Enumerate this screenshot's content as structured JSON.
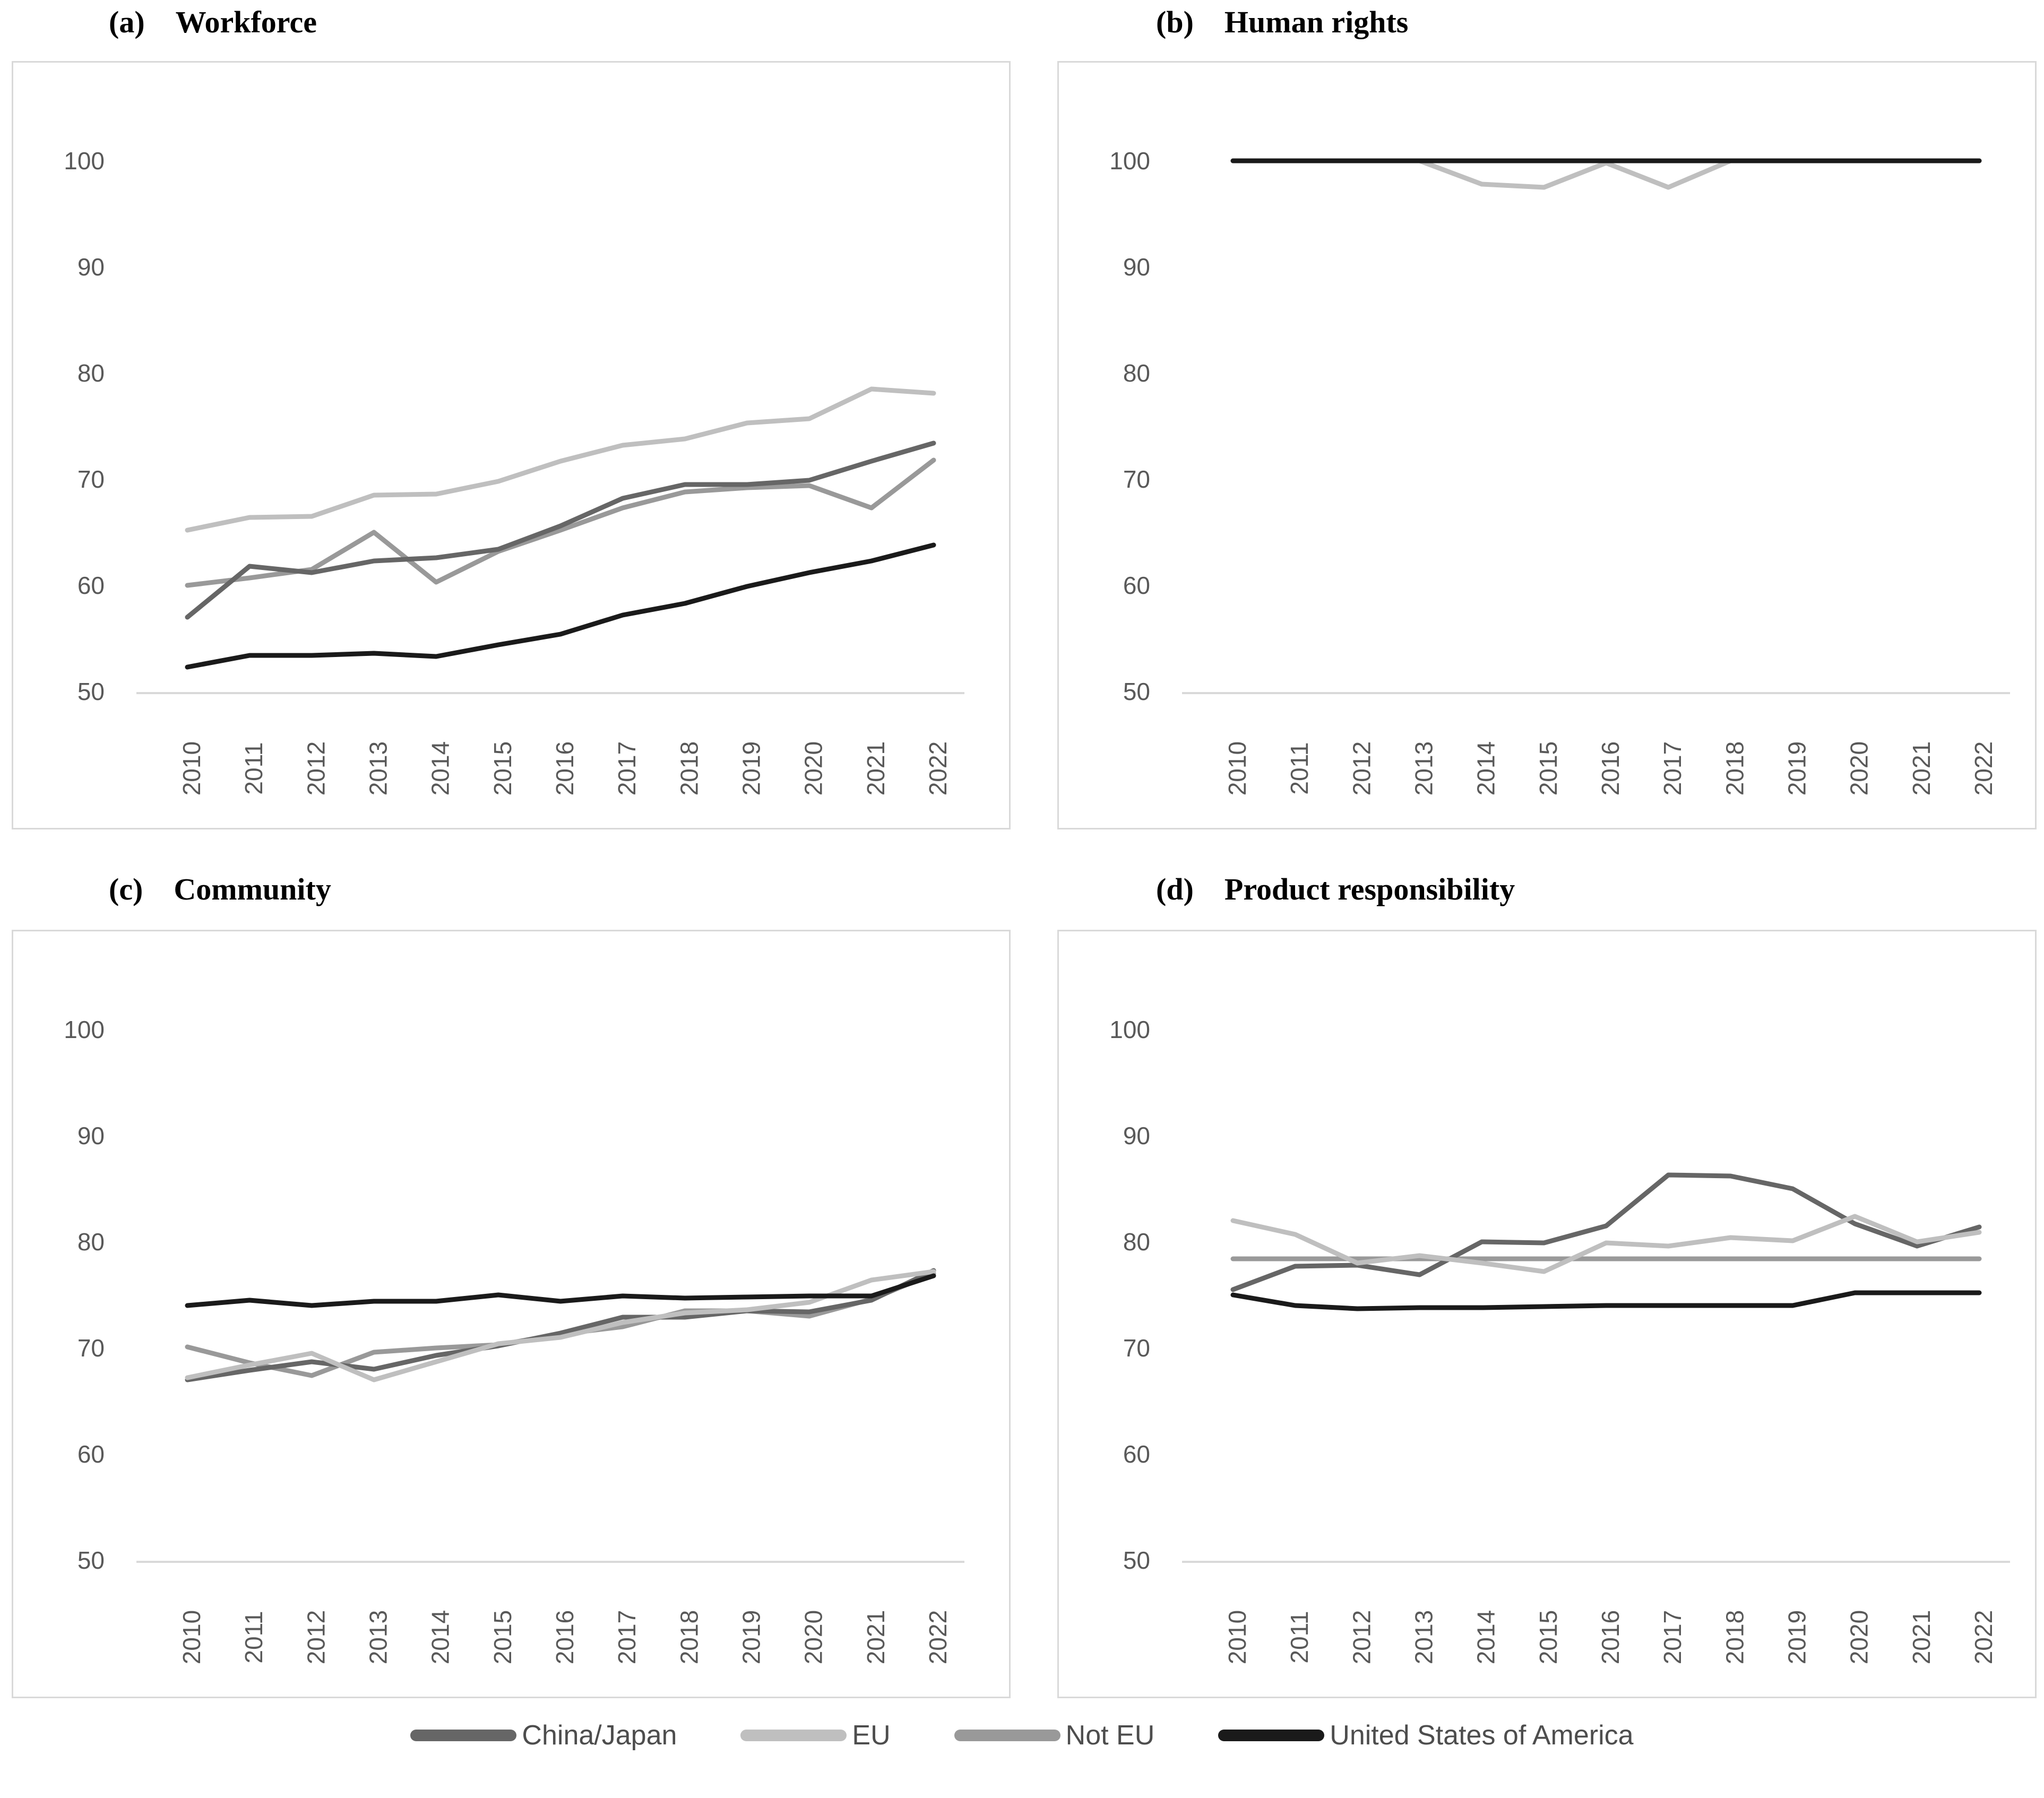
{
  "figure": {
    "description": "Four line charts of ESG pillar scores (2010-2022) by region",
    "ylabel": "",
    "colors": {
      "china_japan": "#666666",
      "eu": "#bfbfbf",
      "not_eu": "#999999",
      "usa": "#1a1a1a",
      "axis_text": "#595959",
      "axis_line": "#d9d9d9",
      "panel_border": "#d9d9d9"
    }
  },
  "legend": {
    "items": [
      {
        "label": "China/Japan",
        "color": "#666666"
      },
      {
        "label": "EU",
        "color": "#bfbfbf"
      },
      {
        "label": "Not EU",
        "color": "#999999"
      },
      {
        "label": "United States of America",
        "color": "#1a1a1a"
      }
    ]
  },
  "chart_data": [
    {
      "type": "line",
      "panel_label": "(a)",
      "title": "Workforce",
      "categories": [
        "2010",
        "2011",
        "2012",
        "2013",
        "2014",
        "2015",
        "2016",
        "2017",
        "2018",
        "2019",
        "2020",
        "2021",
        "2022"
      ],
      "ylim": [
        50,
        100
      ],
      "yticks": [
        100,
        90,
        80,
        70,
        60,
        50
      ],
      "grid": false,
      "series": [
        {
          "name": "Not EU",
          "color": "#999999",
          "values": [
            60.0,
            60.7,
            61.5,
            65.0,
            60.3,
            63.2,
            65.2,
            67.3,
            68.8,
            69.2,
            69.4,
            67.3,
            71.8
          ]
        },
        {
          "name": "China/Japan",
          "color": "#666666",
          "values": [
            57.0,
            61.8,
            61.2,
            62.3,
            62.6,
            63.4,
            65.6,
            68.2,
            69.5,
            69.5,
            69.9,
            71.7,
            73.4
          ]
        },
        {
          "name": "EU",
          "color": "#bfbfbf",
          "values": [
            65.2,
            66.4,
            66.5,
            68.5,
            68.6,
            69.8,
            71.7,
            73.2,
            73.8,
            75.3,
            75.7,
            78.5,
            78.1
          ]
        },
        {
          "name": "United States of America",
          "color": "#1a1a1a",
          "values": [
            52.3,
            53.4,
            53.4,
            53.6,
            53.3,
            54.4,
            55.4,
            57.2,
            58.3,
            59.9,
            61.2,
            62.3,
            63.8
          ]
        }
      ]
    },
    {
      "type": "line",
      "panel_label": "(b)",
      "title": "Human rights",
      "categories": [
        "2010",
        "2011",
        "2012",
        "2013",
        "2014",
        "2015",
        "2016",
        "2017",
        "2018",
        "2019",
        "2020",
        "2021",
        "2022"
      ],
      "ylim": [
        50,
        100
      ],
      "yticks": [
        100,
        90,
        80,
        70,
        60,
        50
      ],
      "grid": false,
      "series": [
        {
          "name": "Not EU",
          "color": "#999999",
          "values": [
            100,
            100,
            100,
            100,
            100,
            100,
            100,
            100,
            100,
            100,
            100,
            100,
            100
          ]
        },
        {
          "name": "China/Japan",
          "color": "#666666",
          "values": [
            100,
            100,
            100,
            100,
            100,
            100,
            100,
            100,
            100,
            100,
            100,
            100,
            100
          ]
        },
        {
          "name": "EU",
          "color": "#bfbfbf",
          "values": [
            100,
            100,
            100,
            100,
            97.8,
            97.5,
            99.8,
            97.5,
            100,
            100,
            100,
            100,
            100
          ]
        },
        {
          "name": "United States of America",
          "color": "#1a1a1a",
          "values": [
            100,
            100,
            100,
            100,
            100,
            100,
            100,
            100,
            100,
            100,
            100,
            100,
            100
          ]
        }
      ]
    },
    {
      "type": "line",
      "panel_label": "(c)",
      "title": "Community",
      "categories": [
        "2010",
        "2011",
        "2012",
        "2013",
        "2014",
        "2015",
        "2016",
        "2017",
        "2018",
        "2019",
        "2020",
        "2021",
        "2022"
      ],
      "ylim": [
        50,
        100
      ],
      "yticks": [
        100,
        90,
        80,
        70,
        60,
        50
      ],
      "grid": false,
      "series": [
        {
          "name": "Not EU",
          "color": "#999999",
          "values": [
            70.1,
            68.6,
            67.4,
            69.6,
            70.0,
            70.3,
            71.3,
            72.0,
            73.5,
            73.5,
            73.0,
            74.6,
            77.0
          ]
        },
        {
          "name": "China/Japan",
          "color": "#666666",
          "values": [
            67.0,
            67.9,
            68.7,
            68.0,
            69.3,
            70.2,
            71.4,
            72.9,
            72.9,
            73.5,
            73.4,
            74.5,
            77.3
          ]
        },
        {
          "name": "EU",
          "color": "#bfbfbf",
          "values": [
            67.2,
            68.4,
            69.5,
            67.0,
            68.7,
            70.4,
            71.0,
            72.4,
            73.3,
            73.6,
            74.3,
            76.4,
            77.2
          ]
        },
        {
          "name": "United States of America",
          "color": "#1a1a1a",
          "values": [
            74.0,
            74.5,
            74.0,
            74.4,
            74.4,
            75.0,
            74.4,
            74.9,
            74.7,
            74.8,
            74.9,
            74.9,
            76.8
          ]
        }
      ]
    },
    {
      "type": "line",
      "panel_label": "(d)",
      "title": "Product responsibility",
      "categories": [
        "2010",
        "2011",
        "2012",
        "2013",
        "2014",
        "2015",
        "2016",
        "2017",
        "2018",
        "2019",
        "2020",
        "2021",
        "2022"
      ],
      "ylim": [
        50,
        100
      ],
      "yticks": [
        100,
        90,
        80,
        70,
        60,
        50
      ],
      "grid": false,
      "series": [
        {
          "name": "Not EU",
          "color": "#999999",
          "values": [
            78.4,
            78.4,
            78.4,
            78.4,
            78.4,
            78.4,
            78.4,
            78.4,
            78.4,
            78.4,
            78.4,
            78.4,
            78.4
          ]
        },
        {
          "name": "China/Japan",
          "color": "#666666",
          "values": [
            75.5,
            77.7,
            77.8,
            76.9,
            80.0,
            79.9,
            81.5,
            86.3,
            86.2,
            85.0,
            81.7,
            79.6,
            81.4
          ]
        },
        {
          "name": "EU",
          "color": "#bfbfbf",
          "values": [
            82.0,
            80.7,
            78.0,
            78.7,
            78.0,
            77.2,
            79.9,
            79.6,
            80.4,
            80.1,
            82.4,
            80.0,
            80.9
          ]
        },
        {
          "name": "United States of America",
          "color": "#1a1a1a",
          "values": [
            75.0,
            74.0,
            73.7,
            73.8,
            73.8,
            73.9,
            74.0,
            74.0,
            74.0,
            74.0,
            75.2,
            75.2,
            75.2
          ]
        }
      ]
    }
  ]
}
